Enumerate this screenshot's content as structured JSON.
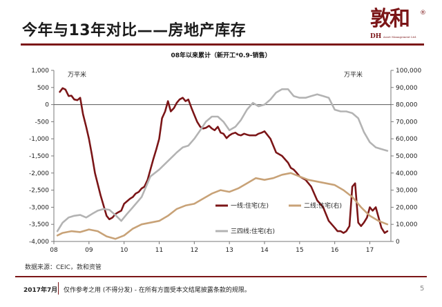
{
  "slide": {
    "title": "今年与13年对比——房地产库存",
    "source": "数据来源：CEIC，敦和资管",
    "footer_date": "2017年7月",
    "disclaimer": "仅作参考之用 (不得分发) - 在所有方面受本文结尾披露条款的规限。",
    "page_number": "5"
  },
  "logo": {
    "mark": "敦和",
    "registered": "®",
    "english_initials": "DH",
    "english_name": "Asset Management Ltd."
  },
  "colors": {
    "brand": "#7b1517",
    "tier1": "#7b1517",
    "tier2": "#c8a277",
    "tier34": "#b3b3b3"
  },
  "chart_data": {
    "type": "line",
    "title": "08年以来累计（新开工*0.9-销售）",
    "left_unit": "万平米",
    "right_unit": "万平米",
    "x_tick_labels": [
      "08",
      "09",
      "10",
      "11",
      "12",
      "13",
      "14",
      "15",
      "16",
      "17"
    ],
    "x_domain": [
      2008.0,
      2017.6
    ],
    "ylim_left": [
      -4000,
      1000
    ],
    "ylim_right": [
      0,
      100000
    ],
    "y_ticks_left": [
      -4000,
      -3500,
      -3000,
      -2500,
      -2000,
      -1500,
      -1000,
      -500,
      0,
      500,
      1000
    ],
    "y_ticks_left_labels": [
      "-4,000",
      "-3,500",
      "-3,000",
      "-2,500",
      "-2,000",
      "-1,500",
      "-1,000",
      "-500",
      "0",
      "500",
      "1,000"
    ],
    "y_ticks_right": [
      0,
      10000,
      20000,
      30000,
      40000,
      50000,
      60000,
      70000,
      80000,
      90000,
      100000
    ],
    "y_ticks_right_labels": [
      "0",
      "10,000",
      "20,000",
      "30,000",
      "40,000",
      "50,000",
      "60,000",
      "70,000",
      "80,000",
      "90,000",
      "100,000"
    ],
    "series": [
      {
        "name": "一线:住宅(左)",
        "axis": "left",
        "color": "#7b1517",
        "x": [
          2008.17,
          2008.25,
          2008.33,
          2008.42,
          2008.5,
          2008.58,
          2008.67,
          2008.75,
          2008.83,
          2008.92,
          2009.0,
          2009.08,
          2009.17,
          2009.33,
          2009.5,
          2009.58,
          2009.67,
          2009.75,
          2009.83,
          2009.92,
          2010.0,
          2010.17,
          2010.25,
          2010.33,
          2010.42,
          2010.5,
          2010.58,
          2010.67,
          2010.75,
          2010.83,
          2010.92,
          2011.0,
          2011.08,
          2011.17,
          2011.25,
          2011.33,
          2011.42,
          2011.5,
          2011.58,
          2011.67,
          2011.75,
          2011.83,
          2011.92,
          2012.0,
          2012.08,
          2012.17,
          2012.25,
          2012.33,
          2012.42,
          2012.5,
          2012.58,
          2012.67,
          2012.75,
          2012.83,
          2012.92,
          2013.0,
          2013.08,
          2013.17,
          2013.25,
          2013.33,
          2013.42,
          2013.5,
          2013.58,
          2013.67,
          2013.75,
          2013.83,
          2013.92,
          2014.0,
          2014.17,
          2014.33,
          2014.5,
          2014.67,
          2014.75,
          2014.83,
          2014.92,
          2015.0,
          2015.17,
          2015.33,
          2015.5,
          2015.67,
          2015.83,
          2016.0,
          2016.08,
          2016.17,
          2016.25,
          2016.33,
          2016.42,
          2016.5,
          2016.58,
          2016.67,
          2016.75,
          2016.83,
          2016.92,
          2017.0,
          2017.08,
          2017.17,
          2017.25,
          2017.33,
          2017.42,
          2017.5
        ],
        "values": [
          370,
          480,
          440,
          250,
          260,
          150,
          130,
          200,
          -280,
          -650,
          -1000,
          -1450,
          -2000,
          -2650,
          -3250,
          -3350,
          -3300,
          -3200,
          -3150,
          -3100,
          -2900,
          -2750,
          -2700,
          -2600,
          -2550,
          -2450,
          -2400,
          -2200,
          -1900,
          -1600,
          -1300,
          -1000,
          -400,
          -200,
          100,
          -200,
          -100,
          50,
          150,
          200,
          100,
          150,
          -100,
          -300,
          -500,
          -650,
          -700,
          -680,
          -620,
          -700,
          -750,
          -650,
          -820,
          -850,
          -980,
          -900,
          -850,
          -820,
          -880,
          -900,
          -850,
          -880,
          -900,
          -900,
          -900,
          -850,
          -820,
          -780,
          -1000,
          -1400,
          -1500,
          -1700,
          -1850,
          -1900,
          -2000,
          -2100,
          -2200,
          -2400,
          -2800,
          -3000,
          -3400,
          -3600,
          -3700,
          -3700,
          -3750,
          -3700,
          -3550,
          -2400,
          -2300,
          -3450,
          -3550,
          -3450,
          -3300,
          -3000,
          -3100,
          -3000,
          -3300,
          -3600,
          -3750,
          -3700
        ],
        "x_fix": true
      },
      {
        "name": "二线:住宅(右)",
        "axis": "right",
        "color": "#c8a277",
        "x": [
          2008.1,
          2008.25,
          2008.5,
          2008.75,
          2009.0,
          2009.25,
          2009.5,
          2009.75,
          2010.0,
          2010.25,
          2010.5,
          2010.75,
          2011.0,
          2011.25,
          2011.5,
          2011.75,
          2012.0,
          2012.25,
          2012.5,
          2012.75,
          2013.0,
          2013.25,
          2013.5,
          2013.75,
          2014.0,
          2014.25,
          2014.5,
          2014.75,
          2015.0,
          2015.25,
          2015.5,
          2015.75,
          2016.0,
          2016.25,
          2016.5,
          2016.75,
          2017.0,
          2017.25,
          2017.5
        ],
        "values": [
          3500,
          5000,
          6000,
          5500,
          7000,
          6000,
          3000,
          1500,
          3500,
          7500,
          10000,
          11000,
          12000,
          15000,
          19000,
          21000,
          22000,
          25000,
          28000,
          30000,
          29000,
          31000,
          34000,
          37000,
          36000,
          37000,
          39000,
          40000,
          38000,
          36000,
          35000,
          34000,
          33000,
          30000,
          26000,
          20000,
          15000,
          12000,
          10000
        ]
      },
      {
        "name": "三四线:住宅(右)",
        "axis": "right",
        "color": "#b3b3b3",
        "x": [
          2008.1,
          2008.25,
          2008.42,
          2008.58,
          2008.75,
          2008.92,
          2009.08,
          2009.25,
          2009.42,
          2009.58,
          2009.75,
          2009.92,
          2010.08,
          2010.25,
          2010.5,
          2010.75,
          2011.0,
          2011.25,
          2011.5,
          2011.67,
          2011.83,
          2012.0,
          2012.17,
          2012.33,
          2012.5,
          2012.67,
          2012.83,
          2013.0,
          2013.17,
          2013.33,
          2013.5,
          2013.67,
          2013.83,
          2014.0,
          2014.17,
          2014.33,
          2014.5,
          2014.67,
          2014.83,
          2015.0,
          2015.17,
          2015.33,
          2015.5,
          2015.67,
          2015.83,
          2016.0,
          2016.17,
          2016.33,
          2016.5,
          2016.67,
          2016.83,
          2017.0,
          2017.17,
          2017.33,
          2017.5
        ],
        "values": [
          6000,
          11000,
          14000,
          15000,
          15500,
          14000,
          16000,
          18000,
          19000,
          18500,
          15500,
          12000,
          16000,
          20000,
          26000,
          38000,
          42000,
          47000,
          52000,
          55000,
          56000,
          60000,
          65000,
          70000,
          73000,
          73000,
          70000,
          65000,
          67000,
          71000,
          77000,
          81000,
          79000,
          80000,
          83000,
          87000,
          89000,
          89000,
          85000,
          84000,
          84000,
          85000,
          86000,
          85000,
          84000,
          77000,
          76000,
          76000,
          75000,
          72000,
          64000,
          58000,
          55000,
          54000,
          53000
        ]
      }
    ]
  }
}
